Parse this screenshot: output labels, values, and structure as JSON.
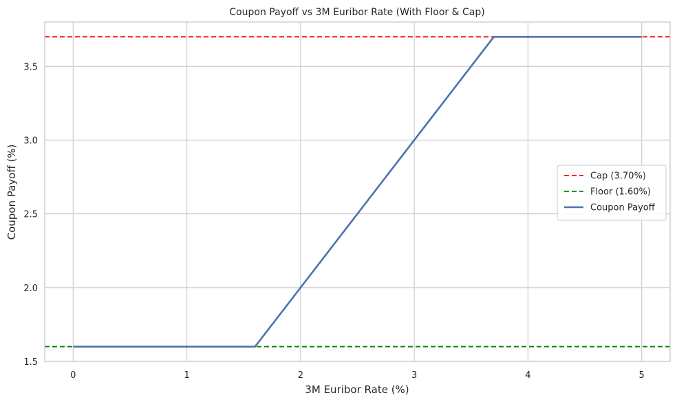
{
  "chart_data": {
    "type": "line",
    "title": "Coupon Payoff vs 3M Euribor Rate (With Floor & Cap)",
    "xlabel": "3M Euribor Rate (%)",
    "ylabel": "Coupon Payoff (%)",
    "xlim": [
      -0.25,
      5.25
    ],
    "ylim": [
      1.5,
      3.8
    ],
    "xticks": [
      0,
      1,
      2,
      3,
      4,
      5
    ],
    "xtick_labels": [
      "0",
      "1",
      "2",
      "3",
      "4",
      "5"
    ],
    "yticks": [
      1.5,
      2.0,
      2.5,
      3.0,
      3.5
    ],
    "ytick_labels": [
      "1.5",
      "2.0",
      "2.5",
      "3.0",
      "3.5"
    ],
    "grid": true,
    "legend_position": "center-right",
    "series": [
      {
        "name": "Cap (3.70%)",
        "kind": "hline",
        "y": 3.7,
        "color": "#ff0000",
        "style": "dashed"
      },
      {
        "name": "Floor (1.60%)",
        "kind": "hline",
        "y": 1.6,
        "color": "#008000",
        "style": "dashed"
      },
      {
        "name": "Coupon Payoff",
        "kind": "line",
        "x": [
          0,
          1.6,
          3.7,
          5
        ],
        "y": [
          1.6,
          1.6,
          3.7,
          3.7
        ],
        "color": "#4c72b0",
        "style": "solid"
      }
    ]
  }
}
